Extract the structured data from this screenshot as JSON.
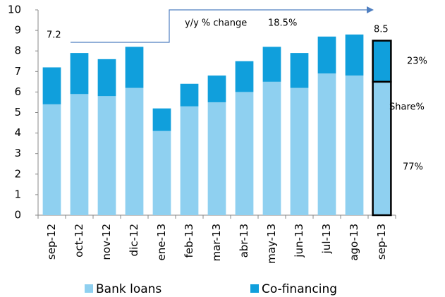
{
  "chart_data": {
    "type": "stacked_bar",
    "categories": [
      "sep-12",
      "oct-12",
      "nov-12",
      "dic-12",
      "ene-13",
      "feb-13",
      "mar-13",
      "abr-13",
      "may-13",
      "jun-13",
      "jul-13",
      "ago-13",
      "sep-13"
    ],
    "series": [
      {
        "name": "Bank loans",
        "color": "#8fd0f0",
        "values": [
          5.4,
          5.9,
          5.8,
          6.2,
          4.1,
          5.3,
          5.5,
          6.0,
          6.5,
          6.2,
          6.9,
          6.8,
          6.5
        ]
      },
      {
        "name": "Co-financing",
        "color": "#109fdc",
        "values": [
          1.8,
          2.0,
          1.8,
          2.0,
          1.1,
          1.1,
          1.3,
          1.5,
          1.7,
          1.7,
          1.8,
          2.0,
          2.0
        ]
      }
    ],
    "ylim": [
      0,
      10
    ],
    "yticks": [
      0,
      1,
      2,
      3,
      4,
      5,
      6,
      7,
      8,
      9,
      10
    ],
    "highlight": 12,
    "annotations": [
      "7.2",
      "y/y % change",
      "18.5%",
      "8.5",
      "23%",
      "Share%",
      "77%"
    ],
    "legend": "bottom"
  }
}
